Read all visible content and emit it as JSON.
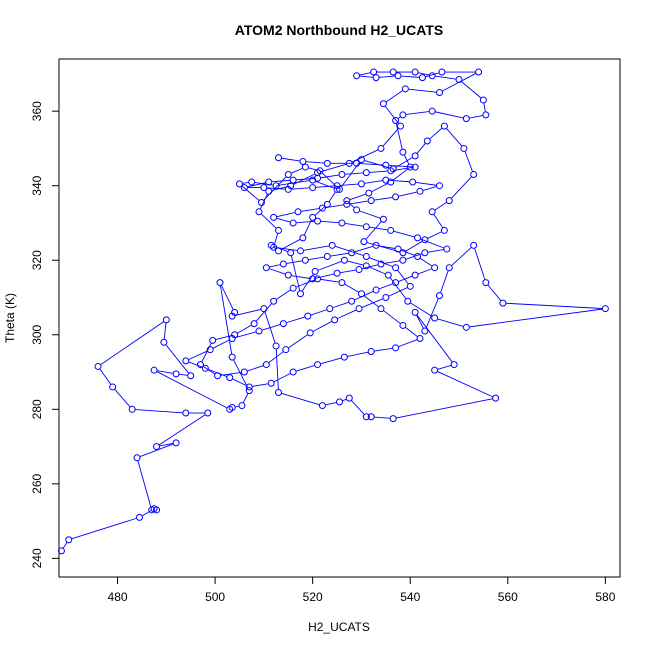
{
  "chart_data": {
    "type": "line",
    "title": "ATOM2 Northbound H2_UCATS",
    "xlabel": "H2_UCATS",
    "ylabel": "Theta (K)",
    "xlim": [
      468,
      583
    ],
    "ylim": [
      235,
      374
    ],
    "x_ticks": [
      480,
      500,
      520,
      540,
      560,
      580
    ],
    "y_ticks": [
      240,
      260,
      280,
      300,
      320,
      340,
      360
    ],
    "grid": false,
    "legend": "none",
    "series": [
      {
        "color": "#0000ff",
        "marker": "open-circle",
        "points": [
          [
            468.5,
            242
          ],
          [
            470,
            245
          ],
          [
            484.5,
            251
          ],
          [
            487.5,
            253.3
          ],
          [
            488,
            253
          ],
          [
            487,
            253
          ],
          [
            484,
            267
          ],
          [
            492,
            271
          ],
          [
            488,
            270
          ],
          [
            498.5,
            279
          ],
          [
            494,
            279
          ],
          [
            483,
            280
          ],
          [
            479,
            286
          ],
          [
            476,
            291.5
          ],
          [
            490,
            304
          ],
          [
            489.5,
            298
          ],
          [
            495,
            289
          ],
          [
            492,
            289.5
          ],
          [
            487.5,
            290.5
          ],
          [
            503,
            280
          ],
          [
            503.5,
            280.5
          ],
          [
            505.5,
            281
          ],
          [
            507,
            285
          ],
          [
            503.5,
            294
          ],
          [
            501,
            314
          ],
          [
            504,
            306
          ],
          [
            503.5,
            305
          ],
          [
            510,
            307
          ],
          [
            512.5,
            297
          ],
          [
            513,
            284.5
          ],
          [
            522,
            281
          ],
          [
            525.5,
            282
          ],
          [
            527.5,
            283
          ],
          [
            531,
            278
          ],
          [
            532,
            278
          ],
          [
            536.5,
            277.5
          ],
          [
            557.5,
            283
          ],
          [
            545,
            290.5
          ],
          [
            549,
            292
          ],
          [
            541,
            306
          ],
          [
            543,
            301
          ],
          [
            546,
            310.5
          ],
          [
            548,
            318
          ],
          [
            553,
            324
          ],
          [
            555.5,
            314
          ],
          [
            559,
            308.5
          ],
          [
            580,
            307
          ],
          [
            551.5,
            302
          ],
          [
            545,
            304.5
          ],
          [
            539.5,
            309
          ],
          [
            535.5,
            316
          ],
          [
            531,
            318.5
          ],
          [
            526.5,
            320
          ],
          [
            520.5,
            317
          ],
          [
            517.5,
            311
          ],
          [
            515.5,
            322
          ],
          [
            511.5,
            324
          ],
          [
            513,
            322.5
          ],
          [
            518,
            326
          ],
          [
            520,
            331.5
          ],
          [
            523,
            335
          ],
          [
            525,
            339
          ],
          [
            520,
            341.5
          ],
          [
            512.5,
            340
          ],
          [
            507.5,
            341
          ],
          [
            505,
            340.5
          ],
          [
            509.5,
            335.5
          ],
          [
            515,
            343
          ],
          [
            518.5,
            345
          ],
          [
            521.5,
            344
          ],
          [
            525.5,
            339
          ],
          [
            530,
            347
          ],
          [
            536.5,
            344.5
          ],
          [
            541,
            348
          ],
          [
            543.5,
            352
          ],
          [
            547,
            356
          ],
          [
            551,
            350
          ],
          [
            553,
            343
          ],
          [
            548,
            336
          ],
          [
            544.5,
            333
          ],
          [
            547,
            328
          ],
          [
            543,
            325.5
          ],
          [
            538.5,
            322
          ],
          [
            530.5,
            325
          ],
          [
            534.5,
            331
          ],
          [
            529,
            333.5
          ],
          [
            527,
            336
          ],
          [
            531.5,
            338
          ],
          [
            536,
            341
          ],
          [
            540,
            345
          ],
          [
            538.5,
            349
          ],
          [
            537,
            357.5
          ],
          [
            538.5,
            359
          ],
          [
            544.5,
            360
          ],
          [
            551.5,
            358
          ],
          [
            555.5,
            359
          ],
          [
            555,
            363
          ],
          [
            550,
            368.5
          ],
          [
            544.5,
            369.5
          ],
          [
            541,
            370.5
          ],
          [
            536.5,
            370.5
          ],
          [
            532.5,
            370.5
          ],
          [
            529,
            369.5
          ],
          [
            533,
            369
          ],
          [
            537.5,
            369.5
          ],
          [
            542.5,
            369
          ],
          [
            546.5,
            370.5
          ],
          [
            554,
            370.5
          ],
          [
            546,
            365
          ],
          [
            539,
            366
          ],
          [
            534.5,
            362
          ],
          [
            538,
            356
          ],
          [
            534,
            350
          ],
          [
            527.5,
            346
          ],
          [
            521,
            343.5
          ],
          [
            515.5,
            340
          ],
          [
            511,
            338.5
          ],
          [
            509,
            333
          ],
          [
            513,
            328
          ],
          [
            512,
            323.5
          ],
          [
            517.5,
            322.5
          ],
          [
            524,
            324
          ],
          [
            531,
            321
          ],
          [
            537,
            318
          ],
          [
            540,
            313
          ],
          [
            535,
            310
          ],
          [
            529.5,
            307
          ],
          [
            524.5,
            304
          ],
          [
            519.5,
            300.5
          ],
          [
            514.5,
            296
          ],
          [
            510.5,
            292
          ],
          [
            506,
            290
          ],
          [
            500.5,
            289
          ],
          [
            497,
            292
          ],
          [
            499.5,
            298.5
          ],
          [
            504,
            300
          ],
          [
            508,
            303
          ],
          [
            512,
            309
          ],
          [
            516,
            312.5
          ],
          [
            521,
            315
          ],
          [
            526,
            314
          ],
          [
            530,
            311
          ],
          [
            534,
            307
          ],
          [
            538.5,
            302.5
          ],
          [
            542,
            299
          ],
          [
            537,
            296.5
          ],
          [
            532,
            295.5
          ],
          [
            526.5,
            294
          ],
          [
            521,
            292
          ],
          [
            516,
            290
          ],
          [
            511.5,
            287
          ],
          [
            507,
            286
          ],
          [
            503,
            288.5
          ],
          [
            498,
            291
          ],
          [
            494,
            293
          ],
          [
            499,
            296
          ],
          [
            503.5,
            299
          ],
          [
            509,
            301
          ],
          [
            514,
            303
          ],
          [
            519,
            305
          ],
          [
            523.5,
            307
          ],
          [
            528,
            309
          ],
          [
            533,
            312
          ],
          [
            537,
            314
          ],
          [
            541,
            316
          ],
          [
            545,
            318
          ],
          [
            541.5,
            321
          ],
          [
            537.5,
            323
          ],
          [
            533,
            324
          ],
          [
            528,
            322
          ],
          [
            523,
            321
          ],
          [
            518.5,
            320
          ],
          [
            514,
            319
          ],
          [
            510.5,
            318
          ],
          [
            515,
            316
          ],
          [
            520,
            315
          ],
          [
            525,
            316.5
          ],
          [
            529.5,
            317.5
          ],
          [
            534,
            319
          ],
          [
            538.5,
            320
          ],
          [
            543,
            322
          ],
          [
            547.5,
            323
          ],
          [
            541.5,
            326
          ],
          [
            536,
            328
          ],
          [
            531,
            329
          ],
          [
            526,
            330
          ],
          [
            521,
            330.5
          ],
          [
            516,
            330
          ],
          [
            512,
            331.5
          ],
          [
            517,
            333
          ],
          [
            522,
            334
          ],
          [
            527,
            335
          ],
          [
            532,
            336
          ],
          [
            537,
            337
          ],
          [
            542,
            338.5
          ],
          [
            546,
            340
          ],
          [
            540.5,
            341
          ],
          [
            535,
            341.5
          ],
          [
            530,
            340.5
          ],
          [
            525,
            340
          ],
          [
            520,
            339.5
          ],
          [
            515,
            339
          ],
          [
            510,
            339.5
          ],
          [
            506,
            339.5
          ],
          [
            511,
            341
          ],
          [
            516,
            341.5
          ],
          [
            521,
            342
          ],
          [
            526,
            343
          ],
          [
            531,
            343.5
          ],
          [
            536,
            344
          ],
          [
            541,
            345
          ],
          [
            535,
            345.5
          ],
          [
            529,
            346
          ],
          [
            523,
            346
          ],
          [
            518,
            346.5
          ],
          [
            513,
            347.5
          ]
        ]
      }
    ]
  }
}
